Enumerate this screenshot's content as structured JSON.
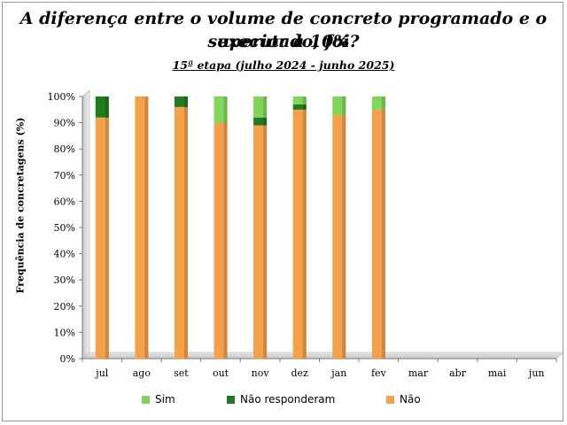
{
  "chart_data": {
    "type": "bar",
    "stacked": true,
    "title_line1": "A diferença entre o volume de concreto programado e o executado, foi",
    "title_line2": "superior à 10%?",
    "subtitle": "15ª etapa (julho 2024 - junho 2025)",
    "xlabel": "",
    "ylabel": "Frequência de concretagens (%)",
    "ylim": [
      0,
      100
    ],
    "yticks": [
      "0%",
      "10%",
      "20%",
      "30%",
      "40%",
      "50%",
      "60%",
      "70%",
      "80%",
      "90%",
      "100%"
    ],
    "categories": [
      "jul",
      "ago",
      "set",
      "out",
      "nov",
      "dez",
      "jan",
      "fev",
      "mar",
      "abr",
      "mai",
      "jun"
    ],
    "series": [
      {
        "name": "Não",
        "color": "#f5a04a",
        "values": [
          92,
          100,
          96,
          90,
          89,
          95,
          93,
          95,
          null,
          null,
          null,
          null
        ]
      },
      {
        "name": "Não responderam",
        "color": "#1e7b1e",
        "values": [
          8,
          0,
          4,
          0,
          3,
          2,
          0,
          0,
          null,
          null,
          null,
          null
        ]
      },
      {
        "name": "Sim",
        "color": "#7fd65a",
        "values": [
          0,
          0,
          0,
          10,
          8,
          3,
          7,
          5,
          null,
          null,
          null,
          null
        ]
      }
    ],
    "legend_order": [
      "Sim",
      "Não responderam",
      "Não"
    ],
    "legend_position": "bottom",
    "grid": false
  }
}
